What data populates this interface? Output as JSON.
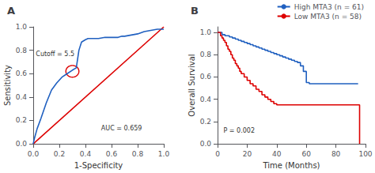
{
  "chart_data": [
    {
      "type": "line",
      "title": "A",
      "xlabel": "1-Specificity",
      "ylabel": "Sensitivity",
      "series": [
        {
          "x": [
            0.0,
            1.0
          ],
          "values": [
            0.0,
            1.0
          ],
          "color": "#dd0000"
        },
        {
          "x": [
            0.0,
            0.01,
            0.03,
            0.06,
            0.1,
            0.14,
            0.18,
            0.22,
            0.26,
            0.3,
            0.33,
            0.35,
            0.37,
            0.4,
            0.42,
            0.44,
            0.5,
            0.55,
            0.6,
            0.65,
            0.68,
            0.7,
            0.75,
            0.8,
            0.85,
            0.9,
            0.95,
            1.0
          ],
          "values": [
            0.0,
            0.05,
            0.13,
            0.22,
            0.35,
            0.46,
            0.52,
            0.57,
            0.6,
            0.63,
            0.65,
            0.8,
            0.87,
            0.89,
            0.9,
            0.9,
            0.9,
            0.91,
            0.91,
            0.91,
            0.92,
            0.92,
            0.93,
            0.94,
            0.96,
            0.97,
            0.98,
            0.98
          ],
          "color": "#2060c0"
        }
      ],
      "annotations": [
        {
          "text": "Cutoff = 5.5"
        },
        {
          "text": "AUC = 0.659"
        },
        {
          "shape": "circle",
          "x": 0.3,
          "y": 0.62,
          "radius": 0.05,
          "color": "#dd0000"
        }
      ],
      "xlim": [
        0.0,
        1.0
      ],
      "ylim": [
        0.0,
        1.0
      ],
      "xticks": [
        {
          "value": 0,
          "label": "0.0"
        },
        0.2,
        0.4,
        0.6,
        0.8,
        {
          "value": 1,
          "label": "1.0"
        }
      ],
      "yticks": [
        {
          "value": 0,
          "label": "0.0"
        },
        0.2,
        0.4,
        0.6,
        0.8,
        {
          "value": 1,
          "label": "1.0"
        }
      ],
      "grid": false
    },
    {
      "type": "step",
      "title": "B",
      "xlabel": "Time (Months)",
      "ylabel": "Overall Survival",
      "series": [
        {
          "name": "High MTA3 (n = 61)",
          "color": "#2060c0",
          "x": [
            0,
            3,
            5,
            8,
            10,
            12,
            14,
            16,
            18,
            20,
            22,
            24,
            26,
            28,
            30,
            32,
            34,
            36,
            38,
            40,
            42,
            44,
            46,
            48,
            50,
            52,
            54,
            56,
            58,
            60,
            62,
            95
          ],
          "values": [
            1.0,
            0.98,
            0.97,
            0.96,
            0.95,
            0.94,
            0.93,
            0.92,
            0.91,
            0.9,
            0.89,
            0.88,
            0.87,
            0.86,
            0.85,
            0.84,
            0.83,
            0.82,
            0.81,
            0.8,
            0.79,
            0.78,
            0.77,
            0.76,
            0.75,
            0.74,
            0.73,
            0.7,
            0.65,
            0.55,
            0.54,
            0.54
          ]
        },
        {
          "name": "Low MTA3 (n = 58)",
          "color": "#dd0000",
          "x": [
            0,
            2,
            3,
            4,
            5,
            6,
            7,
            8,
            9,
            10,
            11,
            12,
            13,
            14,
            15,
            16,
            18,
            20,
            22,
            24,
            26,
            28,
            30,
            32,
            34,
            36,
            38,
            40,
            42,
            44,
            46,
            48,
            50,
            52,
            54,
            56,
            58,
            60,
            90,
            95,
            96
          ],
          "values": [
            1.0,
            0.97,
            0.95,
            0.93,
            0.91,
            0.88,
            0.85,
            0.83,
            0.8,
            0.77,
            0.75,
            0.72,
            0.7,
            0.68,
            0.65,
            0.63,
            0.6,
            0.57,
            0.54,
            0.52,
            0.49,
            0.47,
            0.44,
            0.42,
            0.4,
            0.38,
            0.36,
            0.35,
            0.35,
            0.35,
            0.35,
            0.35,
            0.35,
            0.35,
            0.35,
            0.35,
            0.35,
            0.35,
            0.35,
            0.35,
            0.0
          ]
        }
      ],
      "annotations": [
        {
          "text": "P = 0.002"
        }
      ],
      "legend": "upper right",
      "xlim": [
        0,
        100
      ],
      "ylim": [
        0.0,
        1.05
      ],
      "xticks": [
        0,
        20,
        40,
        60,
        80,
        100
      ],
      "yticks": [
        {
          "value": 0,
          "label": "0.0"
        },
        0.2,
        0.4,
        0.6,
        0.8,
        {
          "value": 1,
          "label": "1.0"
        }
      ],
      "grid": false
    }
  ]
}
